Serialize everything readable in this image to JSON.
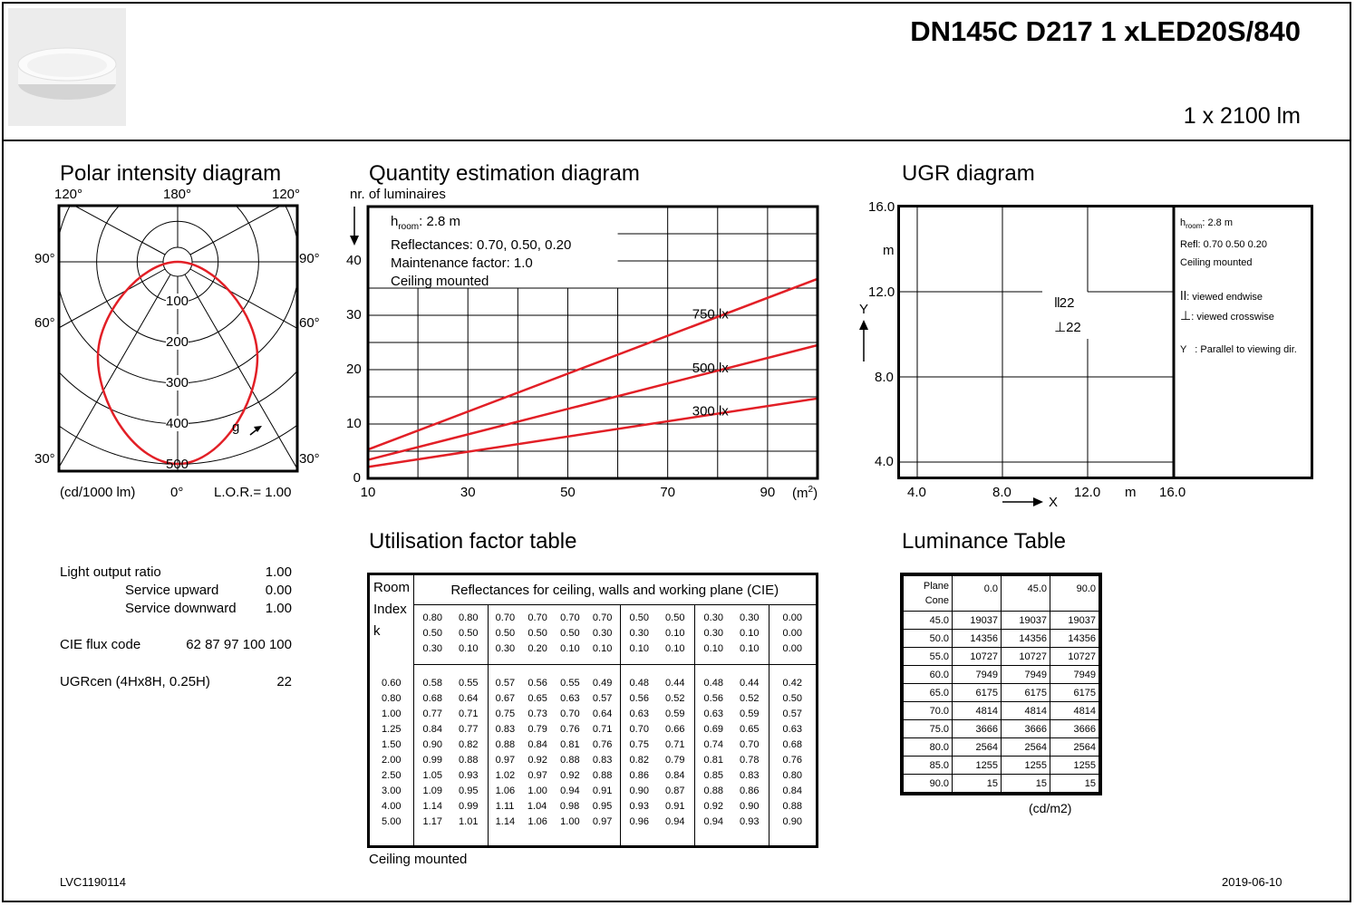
{
  "header": {
    "product_code": "DN145C D217 1 xLED20S/840",
    "flux": "1 x 2100 lm",
    "product_image": "ceiling-luminaire-image"
  },
  "polar": {
    "title": "Polar intensity diagram",
    "angle_labels": {
      "top_left": "120°",
      "top_center": "180°",
      "top_right": "120°",
      "l90": "90°",
      "r90": "90°",
      "l60": "60°",
      "r60": "60°",
      "l30": "30°",
      "r30": "30°",
      "bottom": "0°"
    },
    "rings": [
      "100",
      "200",
      "300",
      "400",
      "500"
    ],
    "curve_label": "g",
    "units": "(cd/1000 lm)",
    "lor": "L.O.R.= 1.00"
  },
  "quantity": {
    "title": "Quantity estimation diagram",
    "ylabel": "nr. of luminaires",
    "info": [
      "2.8 m",
      "Reflectances: 0.70, 0.50, 0.20",
      "Maintenance factor: 1.0",
      "Ceiling mounted"
    ],
    "info_h": "h",
    "info_h_sub": "room",
    "info_h_colon": ":",
    "xunit": "(m",
    "xunit_sup": "2",
    "xunit_close": ")"
  },
  "chart_data": {
    "type": "line",
    "x": [
      10,
      100
    ],
    "xticks": [
      "10",
      "30",
      "50",
      "70",
      "90"
    ],
    "yticks": [
      "0",
      "10",
      "20",
      "30",
      "40"
    ],
    "xlim": [
      10,
      100
    ],
    "ylim": [
      0,
      50
    ],
    "series": [
      {
        "name": "750 lx",
        "values": [
          5.3,
          36.7
        ]
      },
      {
        "name": "500 lx",
        "values": [
          3.4,
          24.5
        ]
      },
      {
        "name": "300 lx",
        "values": [
          2.1,
          14.7
        ]
      }
    ]
  },
  "ugr": {
    "title": "UGR diagram",
    "yticks": [
      "16.0",
      "12.0",
      "8.0",
      "4.0"
    ],
    "xticks": [
      "4.0",
      "8.0",
      "12.0",
      "16.0"
    ],
    "m_label": "m",
    "ylabel": "Y",
    "xlabel": "X",
    "value_endwise": "22",
    "value_crosswise": "22",
    "legend": {
      "h": "h",
      "h_sub": "room",
      "h_val": ": 2.8 m",
      "refl": "Refl: 0.70 0.50 0.20",
      "mount": "Ceiling mounted",
      "endwise": ": viewed endwise",
      "crosswise": ": viewed crosswise",
      "y": "Y   : Parallel to viewing dir."
    }
  },
  "summary": {
    "rows": [
      {
        "label": "Light output ratio",
        "value": "1.00"
      },
      {
        "label": "Service upward",
        "value": "0.00"
      },
      {
        "label": "Service downward",
        "value": "1.00"
      },
      {
        "label": "CIE flux code",
        "value": "62 87 97 100 100"
      },
      {
        "label": "UGRcen (4Hx8H, 0.25H)",
        "value": "22"
      }
    ]
  },
  "utilisation": {
    "title": "Utilisation factor table",
    "header": "Reflectances for ceiling, walls and working plane (CIE)",
    "room_label": [
      "Room",
      "Index",
      "k"
    ],
    "refl_groups": [
      [
        [
          "0.80",
          "0.80"
        ],
        [
          "0.50",
          "0.50"
        ],
        [
          "0.30",
          "0.10"
        ]
      ],
      [
        [
          "0.70",
          "0.70",
          "0.70",
          "0.70"
        ],
        [
          "0.50",
          "0.50",
          "0.50",
          "0.30"
        ],
        [
          "0.30",
          "0.20",
          "0.10",
          "0.10"
        ]
      ],
      [
        [
          "0.50",
          "0.50"
        ],
        [
          "0.30",
          "0.10"
        ],
        [
          "0.10",
          "0.10"
        ]
      ],
      [
        [
          "0.30",
          "0.30"
        ],
        [
          "0.30",
          "0.10"
        ],
        [
          "0.10",
          "0.10"
        ]
      ],
      [
        [
          "0.00"
        ],
        [
          "0.00"
        ],
        [
          "0.00"
        ]
      ]
    ],
    "k": [
      "0.60",
      "0.80",
      "1.00",
      "1.25",
      "1.50",
      "2.00",
      "2.50",
      "3.00",
      "4.00",
      "5.00"
    ],
    "rows": [
      [
        "0.58",
        "0.55",
        "0.57",
        "0.56",
        "0.55",
        "0.49",
        "0.48",
        "0.44",
        "0.48",
        "0.44",
        "0.42"
      ],
      [
        "0.68",
        "0.64",
        "0.67",
        "0.65",
        "0.63",
        "0.57",
        "0.56",
        "0.52",
        "0.56",
        "0.52",
        "0.50"
      ],
      [
        "0.77",
        "0.71",
        "0.75",
        "0.73",
        "0.70",
        "0.64",
        "0.63",
        "0.59",
        "0.63",
        "0.59",
        "0.57"
      ],
      [
        "0.84",
        "0.77",
        "0.83",
        "0.79",
        "0.76",
        "0.71",
        "0.70",
        "0.66",
        "0.69",
        "0.65",
        "0.63"
      ],
      [
        "0.90",
        "0.82",
        "0.88",
        "0.84",
        "0.81",
        "0.76",
        "0.75",
        "0.71",
        "0.74",
        "0.70",
        "0.68"
      ],
      [
        "0.99",
        "0.88",
        "0.97",
        "0.92",
        "0.88",
        "0.83",
        "0.82",
        "0.79",
        "0.81",
        "0.78",
        "0.76"
      ],
      [
        "1.05",
        "0.93",
        "1.02",
        "0.97",
        "0.92",
        "0.88",
        "0.86",
        "0.84",
        "0.85",
        "0.83",
        "0.80"
      ],
      [
        "1.09",
        "0.95",
        "1.06",
        "1.00",
        "0.94",
        "0.91",
        "0.90",
        "0.87",
        "0.88",
        "0.86",
        "0.84"
      ],
      [
        "1.14",
        "0.99",
        "1.11",
        "1.04",
        "0.98",
        "0.95",
        "0.93",
        "0.91",
        "0.92",
        "0.90",
        "0.88"
      ],
      [
        "1.17",
        "1.01",
        "1.14",
        "1.06",
        "1.00",
        "0.97",
        "0.96",
        "0.94",
        "0.94",
        "0.93",
        "0.90"
      ]
    ],
    "footer": "Ceiling mounted"
  },
  "luminance": {
    "title": "Luminance Table",
    "corner": [
      "Plane",
      "Cone"
    ],
    "cols": [
      "0.0",
      "45.0",
      "90.0"
    ],
    "rows": [
      [
        "45.0",
        "19037",
        "19037",
        "19037"
      ],
      [
        "50.0",
        "14356",
        "14356",
        "14356"
      ],
      [
        "55.0",
        "10727",
        "10727",
        "10727"
      ],
      [
        "60.0",
        "7949",
        "7949",
        "7949"
      ],
      [
        "65.0",
        "6175",
        "6175",
        "6175"
      ],
      [
        "70.0",
        "4814",
        "4814",
        "4814"
      ],
      [
        "75.0",
        "3666",
        "3666",
        "3666"
      ],
      [
        "80.0",
        "2564",
        "2564",
        "2564"
      ],
      [
        "85.0",
        "1255",
        "1255",
        "1255"
      ],
      [
        "90.0",
        "15",
        "15",
        "15"
      ]
    ],
    "unit": "(cd/m2)"
  },
  "footer": {
    "doc_id": "LVC1190114",
    "date": "2019-06-10"
  }
}
